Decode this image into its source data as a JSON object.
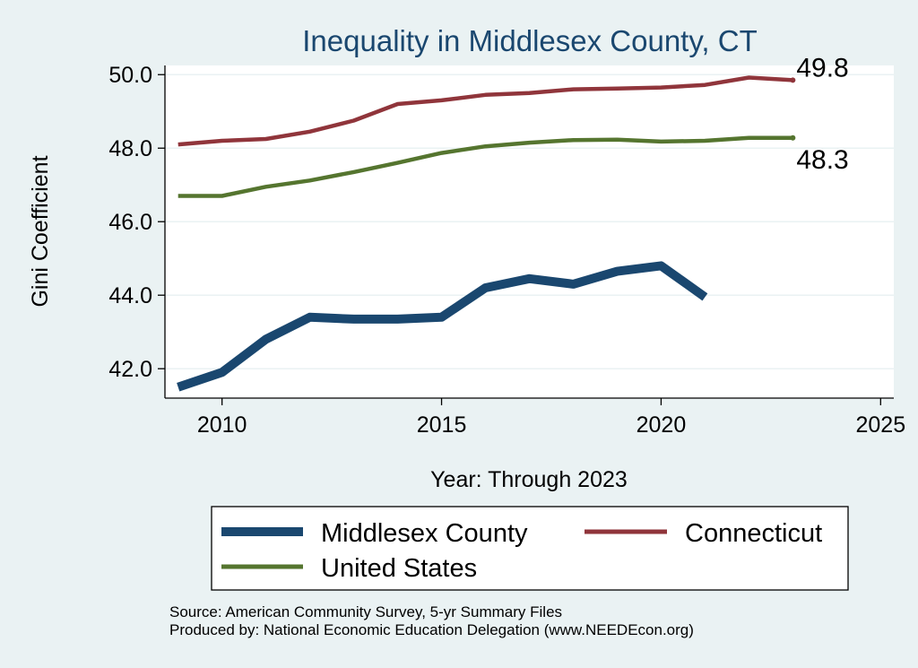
{
  "chart_data": {
    "type": "line",
    "title": "Inequality in Middlesex County, CT",
    "xlabel": "Year: Through 2023",
    "ylabel": "Gini Coefficient",
    "xlim": [
      2008.7,
      2025.3
    ],
    "ylim": [
      41.2,
      50.25
    ],
    "xticks": [
      2010,
      2015,
      2020,
      2025
    ],
    "yticks": [
      42.0,
      44.0,
      46.0,
      48.0,
      50.0
    ],
    "ytick_labels": [
      "42.0",
      "44.0",
      "46.0",
      "48.0",
      "50.0"
    ],
    "grid": true,
    "series": [
      {
        "name": "Middlesex County",
        "color": "#1a476f",
        "x": [
          2009,
          2010,
          2011,
          2012,
          2013,
          2014,
          2015,
          2016,
          2017,
          2018,
          2019,
          2020,
          2021
        ],
        "values": [
          41.5,
          41.9,
          42.8,
          43.4,
          43.35,
          43.35,
          43.4,
          44.2,
          44.45,
          44.3,
          44.65,
          44.8,
          43.95
        ]
      },
      {
        "name": "Connecticut",
        "color": "#90353b",
        "x": [
          2009,
          2010,
          2011,
          2012,
          2013,
          2014,
          2015,
          2016,
          2017,
          2018,
          2019,
          2020,
          2021,
          2022,
          2023
        ],
        "values": [
          48.1,
          48.2,
          48.25,
          48.45,
          48.75,
          49.2,
          49.3,
          49.45,
          49.5,
          49.6,
          49.62,
          49.65,
          49.72,
          49.92,
          49.85
        ],
        "end_label": "49.8"
      },
      {
        "name": "United States",
        "color": "#55752f",
        "x": [
          2009,
          2010,
          2011,
          2012,
          2013,
          2014,
          2015,
          2016,
          2017,
          2018,
          2019,
          2020,
          2021,
          2022,
          2023
        ],
        "values": [
          46.7,
          46.7,
          46.95,
          47.12,
          47.35,
          47.6,
          47.87,
          48.05,
          48.15,
          48.22,
          48.23,
          48.18,
          48.2,
          48.28,
          48.28
        ],
        "end_label": "48.3"
      }
    ],
    "legend": {
      "placement": "bottom",
      "entries": [
        "Middlesex County",
        "Connecticut",
        "United States"
      ]
    },
    "notes": [
      "Source: American Community Survey, 5-yr Summary Files",
      "Produced by: National Economic Education Delegation (www.NEEDEcon.org)"
    ]
  }
}
